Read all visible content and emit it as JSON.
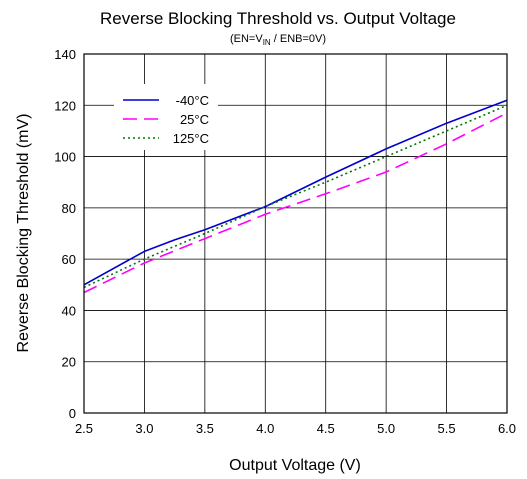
{
  "chart_data": {
    "type": "line",
    "title": "Reverse Blocking Threshold vs. Output Voltage",
    "subtitle": {
      "prefix": "(EN=V",
      "subscript": "IN",
      "suffix": " / ENB=0V)"
    },
    "xlabel": "Output Voltage (V)",
    "ylabel": "Reverse Blocking Threshold (mV)",
    "xlim": [
      2.5,
      6.0
    ],
    "ylim": [
      0,
      140
    ],
    "xticks": [
      "2.5",
      "3.0",
      "3.5",
      "4.0",
      "4.5",
      "5.0",
      "5.5",
      "6.0"
    ],
    "yticks": [
      "0",
      "20",
      "40",
      "60",
      "80",
      "100",
      "120",
      "140"
    ],
    "grid": true,
    "legend_position": "top-left",
    "series": [
      {
        "name": "-40°C",
        "color": "#0000cc",
        "style": "solid",
        "x": [
          2.5,
          3.0,
          3.25,
          3.5,
          4.0,
          4.5,
          5.0,
          5.5,
          6.0
        ],
        "y": [
          50,
          63,
          67.5,
          71.5,
          80.5,
          92,
          103,
          113,
          122
        ]
      },
      {
        "name": "25°C",
        "color": "#ff00ff",
        "style": "dashed",
        "x": [
          2.5,
          3.0,
          3.5,
          4.0,
          4.5,
          5.0,
          5.5,
          6.0
        ],
        "y": [
          47,
          58.5,
          68,
          77.5,
          85.5,
          94,
          105,
          117
        ]
      },
      {
        "name": "125°C",
        "color": "#007700",
        "style": "dotted",
        "x": [
          2.5,
          3.0,
          3.5,
          4.0,
          4.5,
          5.0,
          5.5,
          6.0
        ],
        "y": [
          49,
          60,
          70,
          80.5,
          90,
          100,
          110,
          120
        ]
      }
    ]
  }
}
